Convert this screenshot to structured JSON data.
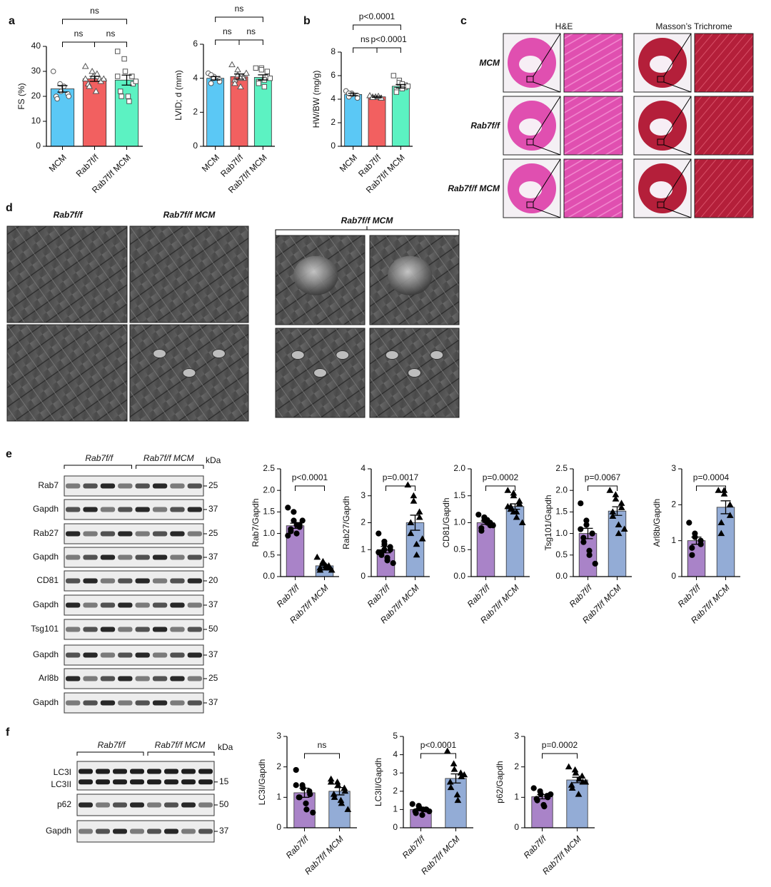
{
  "panel_labels": [
    "a",
    "b",
    "c",
    "d",
    "e",
    "f"
  ],
  "histology": {
    "columns": [
      "H&E",
      "Masson’s Trichrome"
    ],
    "rows": [
      "MCM",
      "Rab7f/f",
      "Rab7f/f MCM"
    ]
  },
  "electron_microscopy": {
    "headers": [
      "Rab7f/f",
      "Rab7f/f MCM",
      "Rab7f/f MCM"
    ]
  },
  "blots_e": {
    "groups": [
      "Rab7f/f",
      "Rab7f/f MCM"
    ],
    "unit": "kDa",
    "bands": [
      {
        "name": "Rab7",
        "kda": 25
      },
      {
        "name": "Gapdh",
        "kda": 37
      },
      {
        "name": "Rab27",
        "kda": 25
      },
      {
        "name": "Gapdh",
        "kda": 37
      },
      {
        "name": "CD81",
        "kda": 20
      },
      {
        "name": "Gapdh",
        "kda": 37
      },
      {
        "name": "Tsg101",
        "kda": 50
      },
      {
        "name": "Gapdh",
        "kda": 37
      },
      {
        "name": "Arl8b",
        "kda": 25
      },
      {
        "name": "Gapdh",
        "kda": 37
      }
    ]
  },
  "blots_f": {
    "groups": [
      "Rab7f/f",
      "Rab7f/f MCM"
    ],
    "unit": "kDa",
    "bands": [
      {
        "name": "LC3I"
      },
      {
        "name": "LC3II",
        "kda": 15
      },
      {
        "name": "p62",
        "kda": 50
      },
      {
        "name": "Gapdh",
        "kda": 37
      }
    ]
  },
  "chart_data": [
    {
      "type": "bar",
      "ylabel": "FS (%)",
      "categories": [
        "MCM",
        "Rab7f/f",
        "Rab7f/f MCM"
      ],
      "values": [
        23,
        27,
        26.5
      ],
      "errors": [
        1.3,
        1,
        2
      ],
      "colors": [
        "#5bc8f5",
        "#f26060",
        "#5cf2c2"
      ],
      "markers": [
        "circle",
        "triangle",
        "square"
      ],
      "marker_fill": false,
      "points": [
        [
          30,
          25,
          22,
          21,
          20,
          20,
          19,
          24
        ],
        [
          32,
          30,
          28,
          27,
          26,
          25,
          24,
          22,
          29,
          27,
          27
        ],
        [
          38,
          35,
          30,
          28,
          25,
          22,
          20,
          20,
          18,
          26,
          28
        ]
      ],
      "ylim": [
        0,
        40
      ],
      "yticks": [
        0,
        10,
        20,
        30,
        40
      ],
      "comparisons": [
        {
          "pair": [
            0,
            1
          ],
          "label": "ns"
        },
        {
          "pair": [
            1,
            2
          ],
          "label": "ns"
        },
        {
          "pair": [
            0,
            2
          ],
          "label": "ns"
        }
      ]
    },
    {
      "type": "bar",
      "ylabel": "LVID; d (mm)",
      "categories": [
        "MCM",
        "Rab7f/f",
        "Rab7f/f MCM"
      ],
      "values": [
        4.0,
        4.1,
        4.05
      ],
      "errors": [
        0.1,
        0.15,
        0.15
      ],
      "colors": [
        "#5bc8f5",
        "#f26060",
        "#5cf2c2"
      ],
      "markers": [
        "circle",
        "triangle",
        "square"
      ],
      "marker_fill": false,
      "points": [
        [
          4.3,
          4.1,
          4.0,
          3.9,
          3.8,
          3.7,
          4.2
        ],
        [
          4.8,
          4.5,
          4.2,
          4.1,
          4.0,
          3.9,
          3.7,
          3.5,
          4.0,
          4.3
        ],
        [
          4.6,
          4.6,
          4.5,
          4.4,
          4.1,
          3.8,
          3.7,
          3.5,
          3.9,
          4.0
        ]
      ],
      "ylim": [
        0,
        6
      ],
      "yticks": [
        0,
        2,
        4,
        6
      ],
      "comparisons": [
        {
          "pair": [
            0,
            1
          ],
          "label": "ns"
        },
        {
          "pair": [
            1,
            2
          ],
          "label": "ns"
        },
        {
          "pair": [
            0,
            2
          ],
          "label": "ns"
        }
      ]
    },
    {
      "type": "bar",
      "ylabel": "HW/BW (mg/g)",
      "categories": [
        "MCM",
        "Rab7f/f",
        "Rab7f/f MCM"
      ],
      "values": [
        4.4,
        4.2,
        5.1
      ],
      "errors": [
        0.1,
        0.05,
        0.15
      ],
      "colors": [
        "#5bc8f5",
        "#f26060",
        "#5cf2c2"
      ],
      "markers": [
        "circle",
        "triangle",
        "square"
      ],
      "marker_fill": false,
      "points": [
        [
          4.7,
          4.5,
          4.4,
          4.3,
          4.1,
          4.2,
          4.5
        ],
        [
          4.3,
          4.2,
          4.2,
          4.1,
          4.1,
          4.2,
          4.15,
          4.25
        ],
        [
          6.0,
          5.6,
          5.4,
          5.2,
          5.0,
          4.8,
          4.6,
          4.9,
          5.3,
          5.1
        ]
      ],
      "ylim": [
        0,
        8
      ],
      "yticks": [
        0,
        2,
        4,
        6,
        8
      ],
      "comparisons": [
        {
          "pair": [
            0,
            1
          ],
          "label": "ns"
        },
        {
          "pair": [
            1,
            2
          ],
          "label": "p<0.0001"
        },
        {
          "pair": [
            0,
            2
          ],
          "label": "p<0.0001"
        }
      ]
    },
    {
      "type": "bar",
      "ylabel": "Rab7/Gapdh",
      "categories": [
        "Rab7f/f",
        "Rab7f/f MCM"
      ],
      "values": [
        1.18,
        0.25
      ],
      "errors": [
        0.06,
        0.03
      ],
      "colors": [
        "#a983c8",
        "#93acd6"
      ],
      "markers": [
        "circle",
        "triangle"
      ],
      "marker_fill": true,
      "points": [
        [
          1.6,
          1.5,
          1.3,
          1.2,
          1.15,
          1.1,
          1.05,
          1.0,
          1.2,
          1.3,
          0.95
        ],
        [
          0.45,
          0.35,
          0.3,
          0.25,
          0.2,
          0.2,
          0.15,
          0.2,
          0.25,
          0.15
        ]
      ],
      "ylim": [
        0,
        2.5
      ],
      "yticks": [
        {
          "value": 0,
          "label": "0.0"
        },
        0.5,
        {
          "value": 1,
          "label": "1.0"
        },
        1.5,
        {
          "value": 2,
          "label": "2.0"
        },
        2.5
      ],
      "comparisons": [
        {
          "pair": [
            0,
            1
          ],
          "label": "p<0.0001"
        }
      ]
    },
    {
      "type": "bar",
      "ylabel": "Rab27/Gapdh",
      "categories": [
        "Rab7f/f",
        "Rab7f/f MCM"
      ],
      "values": [
        1.0,
        2.0
      ],
      "errors": [
        0.12,
        0.28
      ],
      "colors": [
        "#a983c8",
        "#93acd6"
      ],
      "markers": [
        "circle",
        "triangle"
      ],
      "marker_fill": true,
      "points": [
        [
          1.6,
          1.3,
          1.2,
          1.1,
          1.0,
          0.9,
          0.8,
          0.7,
          0.6,
          0.5,
          0.9,
          1.0
        ],
        [
          3.4,
          3.0,
          2.8,
          2.4,
          2.2,
          2.0,
          1.6,
          1.2,
          0.8,
          1.4
        ]
      ],
      "ylim": [
        0,
        4
      ],
      "yticks": [
        0,
        1,
        2,
        3,
        4
      ],
      "comparisons": [
        {
          "pair": [
            0,
            1
          ],
          "label": "p=0.0017"
        }
      ]
    },
    {
      "type": "bar",
      "ylabel": "CD81/Gapdh",
      "categories": [
        "Rab7f/f",
        "Rab7f/f MCM"
      ],
      "values": [
        1.0,
        1.3
      ],
      "errors": [
        0.03,
        0.05
      ],
      "colors": [
        "#a983c8",
        "#93acd6"
      ],
      "markers": [
        "circle",
        "triangle"
      ],
      "marker_fill": true,
      "points": [
        [
          1.15,
          1.1,
          1.05,
          1.0,
          0.95,
          0.9,
          0.85,
          1.0,
          1.05,
          0.95
        ],
        [
          1.6,
          1.55,
          1.5,
          1.4,
          1.35,
          1.3,
          1.25,
          1.2,
          1.1,
          1.0,
          1.3,
          1.2
        ]
      ],
      "ylim": [
        0,
        2
      ],
      "yticks": [
        {
          "value": 0,
          "label": "0.0"
        },
        0.5,
        {
          "value": 1,
          "label": "1.0"
        },
        1.5,
        {
          "value": 2,
          "label": "2.0"
        }
      ],
      "comparisons": [
        {
          "pair": [
            0,
            1
          ],
          "label": "p=0.0002"
        }
      ]
    },
    {
      "type": "bar",
      "ylabel": "Tsg101/Gapdh",
      "categories": [
        "Rab7f/f",
        "Rab7f/f MCM"
      ],
      "values": [
        1.0,
        1.52
      ],
      "errors": [
        0.12,
        0.1
      ],
      "colors": [
        "#a983c8",
        "#93acd6"
      ],
      "markers": [
        "circle",
        "triangle"
      ],
      "marker_fill": true,
      "points": [
        [
          1.7,
          1.3,
          1.2,
          1.0,
          1.0,
          0.9,
          0.8,
          0.6,
          0.5,
          0.3,
          1.1
        ],
        [
          2.0,
          1.9,
          1.8,
          1.7,
          1.6,
          1.5,
          1.4,
          1.2,
          1.0,
          1.1
        ]
      ],
      "ylim": [
        0,
        2.5
      ],
      "yticks": [
        {
          "value": 0,
          "label": "0.0"
        },
        0.5,
        {
          "value": 1,
          "label": "1.0"
        },
        1.5,
        {
          "value": 2,
          "label": "2.0"
        },
        2.5
      ],
      "comparisons": [
        {
          "pair": [
            0,
            1
          ],
          "label": "p=0.0067"
        }
      ]
    },
    {
      "type": "bar",
      "ylabel": "Arl8b/Gapdh",
      "categories": [
        "Rab7f/f",
        "Rab7f/f MCM"
      ],
      "values": [
        1.0,
        1.93
      ],
      "errors": [
        0.1,
        0.18
      ],
      "colors": [
        "#a983c8",
        "#93acd6"
      ],
      "markers": [
        "circle",
        "triangle"
      ],
      "marker_fill": true,
      "points": [
        [
          1.5,
          1.2,
          1.1,
          1.0,
          0.9,
          0.8,
          0.6
        ],
        [
          2.4,
          2.4,
          2.3,
          2.0,
          1.7,
          1.2,
          1.5
        ]
      ],
      "ylim": [
        0,
        3
      ],
      "yticks": [
        0,
        1,
        2,
        3
      ],
      "comparisons": [
        {
          "pair": [
            0,
            1
          ],
          "label": "p=0.0004"
        }
      ]
    },
    {
      "type": "bar",
      "ylabel": "LC3I/Gapdh",
      "categories": [
        "Rab7f/f",
        "Rab7f/f MCM"
      ],
      "values": [
        1.15,
        1.2
      ],
      "errors": [
        0.15,
        0.12
      ],
      "colors": [
        "#a983c8",
        "#93acd6"
      ],
      "markers": [
        "circle",
        "triangle"
      ],
      "marker_fill": true,
      "points": [
        [
          1.9,
          1.4,
          1.3,
          1.2,
          1.1,
          1.0,
          1.0,
          0.8,
          0.6,
          0.5,
          1.4
        ],
        [
          1.6,
          1.5,
          1.4,
          1.3,
          1.2,
          1.1,
          1.0,
          0.9,
          0.8,
          0.6,
          1.5
        ]
      ],
      "ylim": [
        0,
        3
      ],
      "yticks": [
        0,
        1,
        2,
        3
      ],
      "comparisons": [
        {
          "pair": [
            0,
            1
          ],
          "label": "ns"
        }
      ]
    },
    {
      "type": "bar",
      "ylabel": "LC3II/Gapdh",
      "categories": [
        "Rab7f/f",
        "Rab7f/f MCM"
      ],
      "values": [
        1.0,
        2.7
      ],
      "errors": [
        0.07,
        0.25
      ],
      "colors": [
        "#a983c8",
        "#93acd6"
      ],
      "markers": [
        "circle",
        "triangle"
      ],
      "marker_fill": true,
      "points": [
        [
          1.3,
          1.2,
          1.1,
          1.0,
          1.0,
          0.9,
          0.8,
          0.7,
          1.0,
          0.9
        ],
        [
          4.2,
          3.5,
          3.2,
          3.0,
          2.8,
          2.5,
          2.2,
          1.8,
          1.5,
          2.9
        ]
      ],
      "ylim": [
        0,
        5
      ],
      "yticks": [
        0,
        1,
        2,
        3,
        4,
        5
      ],
      "comparisons": [
        {
          "pair": [
            0,
            1
          ],
          "label": "p<0.0001"
        }
      ]
    },
    {
      "type": "bar",
      "ylabel": "p62/Gapdh",
      "categories": [
        "Rab7f/f",
        "Rab7f/f MCM"
      ],
      "values": [
        1.02,
        1.57
      ],
      "errors": [
        0.07,
        0.09
      ],
      "colors": [
        "#a983c8",
        "#93acd6"
      ],
      "markers": [
        "circle",
        "triangle"
      ],
      "marker_fill": true,
      "points": [
        [
          1.3,
          1.2,
          1.1,
          1.05,
          1.0,
          0.95,
          0.9,
          0.75,
          0.7,
          1.1
        ],
        [
          2.0,
          1.9,
          1.8,
          1.7,
          1.5,
          1.4,
          1.3,
          1.1,
          1.6,
          1.5
        ]
      ],
      "ylim": [
        0,
        3
      ],
      "yticks": [
        0,
        1,
        2,
        3
      ],
      "comparisons": [
        {
          "pair": [
            0,
            1
          ],
          "label": "p=0.0002"
        }
      ]
    }
  ]
}
